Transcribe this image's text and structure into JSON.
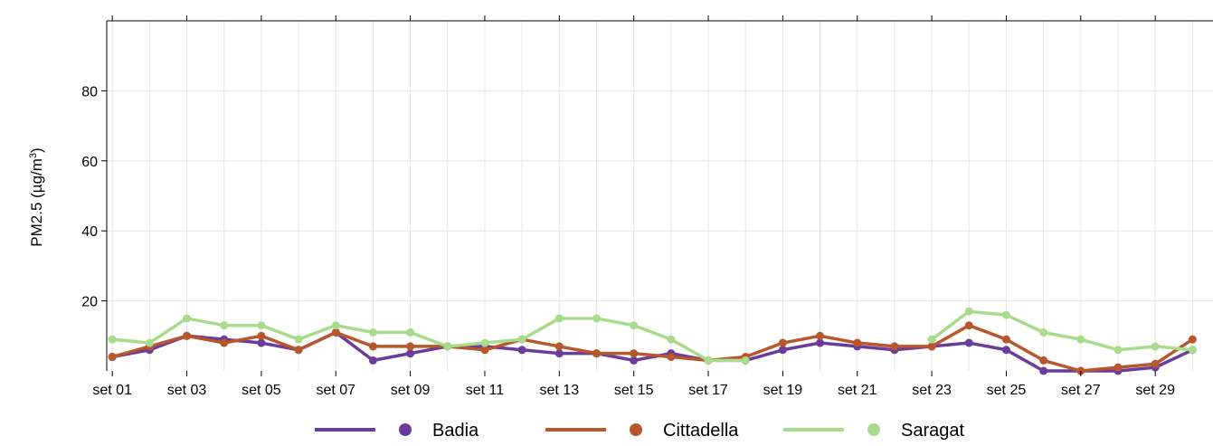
{
  "chart_data": {
    "type": "line",
    "ylabel": {
      "main": "PM2.5 (µg/m",
      "sup": "3",
      "close": ")"
    },
    "ylim": [
      0,
      100
    ],
    "y_ticks": [
      20,
      40,
      60,
      80
    ],
    "x_tick_labels": [
      "set 01",
      "set 03",
      "set 05",
      "set 07",
      "set 09",
      "set 11",
      "set 13",
      "set 15",
      "set 17",
      "set 19",
      "set 21",
      "set 23",
      "set 25",
      "set 27",
      "set 29"
    ],
    "x": [
      1,
      2,
      3,
      4,
      5,
      6,
      7,
      8,
      9,
      10,
      11,
      12,
      13,
      14,
      15,
      16,
      17,
      18,
      19,
      20,
      21,
      22,
      23,
      24,
      25,
      26,
      27,
      28,
      29,
      30
    ],
    "grid": true,
    "legend_position": "bottom",
    "series": [
      {
        "name": "Badia",
        "color": "#6a3d9a",
        "values": [
          4,
          6,
          10,
          9,
          8,
          6,
          11,
          3,
          5,
          7,
          7,
          6,
          5,
          5,
          3,
          5,
          3,
          3,
          6,
          8,
          7,
          6,
          7,
          8,
          6,
          0,
          0,
          0,
          1,
          6
        ]
      },
      {
        "name": "Cittadella",
        "color": "#b8562c",
        "values": [
          4,
          7,
          10,
          8,
          10,
          6,
          11,
          7,
          7,
          7,
          6,
          9,
          7,
          5,
          5,
          4,
          3,
          4,
          8,
          10,
          8,
          7,
          7,
          13,
          9,
          3,
          0,
          1,
          2,
          9
        ]
      },
      {
        "name": "Saragat",
        "color": "#a8dc8c",
        "values": [
          9,
          8,
          15,
          13,
          13,
          9,
          13,
          11,
          11,
          7,
          8,
          9,
          15,
          15,
          13,
          9,
          3,
          3,
          null,
          null,
          null,
          null,
          9,
          17,
          16,
          11,
          9,
          6,
          7,
          6
        ]
      }
    ]
  }
}
